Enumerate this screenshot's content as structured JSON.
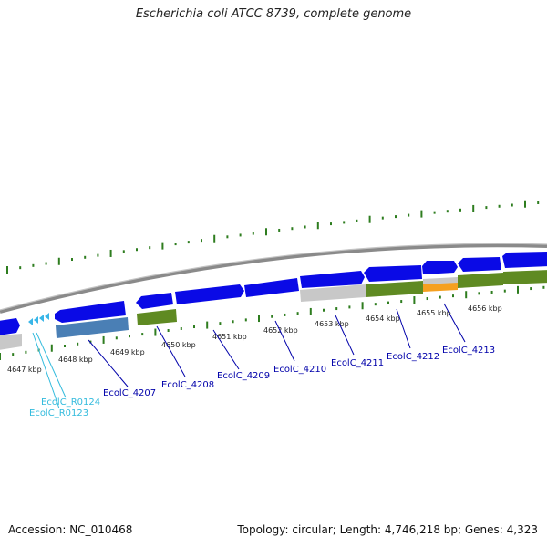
{
  "title": "Escherichia coli ATCC 8739, complete genome",
  "footer": {
    "accession": "Accession: NC_010468",
    "summary": "Topology: circular; Length: 4,746,218 bp; Genes: 4,323"
  },
  "colors": {
    "cds": "#0a0ae6",
    "cds_top": "#6f74ff",
    "trna": "#39b6e8",
    "track_gray": "#8a8a8a",
    "bar_green": "#5f8a22",
    "bar_blue": "#4a7fb5",
    "bar_orange": "#f5a020",
    "bar_gray": "#c8c8c8",
    "tick_green": "#2e7d1f",
    "label_gene": "#0000aa",
    "label_rna": "#33bbdd"
  },
  "kbp_labels": [
    "4647 kbp",
    "4648 kbp",
    "4649 kbp",
    "4650 kbp",
    "4651 kbp",
    "4652 kbp",
    "4653 kbp",
    "4654 kbp",
    "4655 kbp",
    "4656 kbp"
  ],
  "gene_labels": [
    "EcolC_4207",
    "EcolC_4208",
    "EcolC_4209",
    "EcolC_4210",
    "EcolC_4211",
    "EcolC_4212",
    "EcolC_4213"
  ],
  "rna_labels": [
    "EcolC_R0124",
    "EcolC_R0123"
  ]
}
